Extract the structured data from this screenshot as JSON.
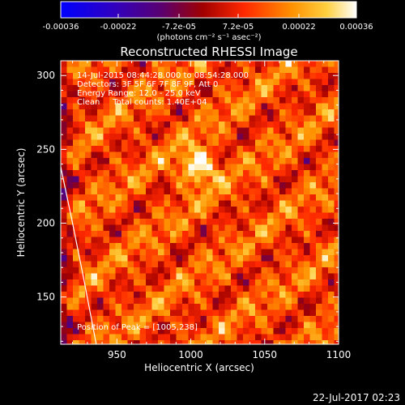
{
  "chart_data": {
    "type": "heatmap",
    "title": "Reconstructed RHESSI Image",
    "xlabel": "Heliocentric X (arcsec)",
    "ylabel": "Heliocentric Y (arcsec)",
    "xlim": [
      912,
      1100
    ],
    "ylim": [
      118,
      310
    ],
    "x_ticks": [
      950,
      1000,
      1050,
      1100
    ],
    "y_ticks": [
      150,
      200,
      250,
      300
    ],
    "colorbar": {
      "range": [
        -0.00036,
        0.00036
      ],
      "tick_labels": [
        "-0.00036",
        "-0.00022",
        "-7.2e-05",
        "7.2e-05",
        "0.00022",
        "0.00036"
      ],
      "tick_values": [
        -0.00036,
        -0.00022,
        -7.2e-05,
        7.2e-05,
        0.00022,
        0.00036
      ],
      "units_label": "(photons cm⁻² s⁻¹ asec⁻²)"
    },
    "annotations": [
      "14-Jul-2015 08:44:28.000 to 08:54:28.000",
      "Detectors: 3F 5F 6F 7F 8F 9F, Att 0",
      "Energy Range: 12.0 - 25.0 keV",
      "Clean     Total counts: 1.40E+04"
    ],
    "peak_label": "Position of Peak = [1005,238]",
    "peak": [
      1005,
      238
    ],
    "limb_curve": [
      [
        912,
        238
      ],
      [
        920,
        200
      ],
      [
        928,
        160
      ],
      [
        936,
        118
      ]
    ]
  },
  "footer_timestamp": "22-Jul-2017 02:23"
}
